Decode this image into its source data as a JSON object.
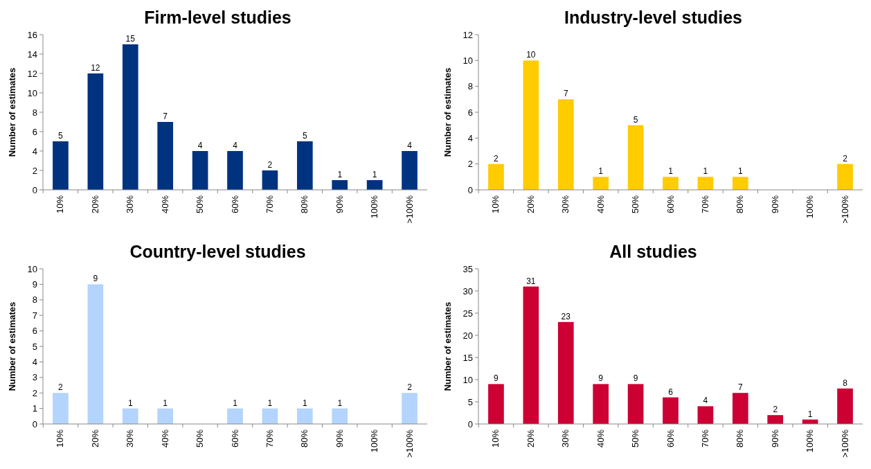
{
  "chart_data": [
    {
      "type": "bar",
      "title": "Firm-level studies",
      "ylabel": "Number of estimates",
      "categories": [
        "10%",
        "20%",
        "30%",
        "40%",
        "50%",
        "60%",
        "70%",
        "80%",
        "90%",
        "100%",
        ">100%"
      ],
      "series": [
        {
          "color": "#00337f",
          "values": [
            5,
            12,
            15,
            7,
            4,
            4,
            2,
            5,
            1,
            1,
            4
          ]
        }
      ],
      "ylim": [
        0,
        16
      ],
      "yticks": [
        0,
        2,
        4,
        6,
        8,
        10,
        12,
        14,
        16
      ],
      "grid": false,
      "data_labels": true
    },
    {
      "type": "bar",
      "title": "Industry-level studies",
      "ylabel": "Number of estimates",
      "categories": [
        "10%",
        "20%",
        "30%",
        "40%",
        "50%",
        "60%",
        "70%",
        "80%",
        "90%",
        "100%",
        ">100%"
      ],
      "series": [
        {
          "color": "#ffcc00",
          "values": [
            2,
            10,
            7,
            1,
            5,
            1,
            1,
            1,
            0,
            0,
            2
          ],
          "value_labels": [
            "2",
            "10",
            "7",
            "1",
            "5",
            "1",
            "1",
            "1",
            null,
            null,
            "2"
          ]
        }
      ],
      "ylim": [
        0,
        12
      ],
      "yticks": [
        0,
        2,
        4,
        6,
        8,
        10,
        12
      ],
      "grid": false
    },
    {
      "type": "bar",
      "title": "Country-level studies",
      "ylabel": "Number of estimates",
      "categories": [
        "10%",
        "20%",
        "30%",
        "40%",
        "50%",
        "60%",
        "70%",
        "80%",
        "90%",
        "100%",
        ">100%"
      ],
      "series": [
        {
          "color": "#b3d4fc",
          "values": [
            2,
            9,
            1,
            1,
            0,
            1,
            1,
            1,
            1,
            0,
            2
          ],
          "value_labels": [
            "2",
            "9",
            "1",
            "1",
            null,
            "1",
            "1",
            "1",
            "1",
            null,
            "2"
          ]
        }
      ],
      "ylim": [
        0,
        10
      ],
      "yticks": [
        0,
        1,
        2,
        3,
        4,
        5,
        6,
        7,
        8,
        9,
        10
      ],
      "grid": false
    },
    {
      "type": "bar",
      "title": "All studies",
      "ylabel": "Number of estimates",
      "categories": [
        "10%",
        "20%",
        "30%",
        "40%",
        "50%",
        "60%",
        "70%",
        "80%",
        "90%",
        "100%",
        ">100%"
      ],
      "series": [
        {
          "color": "#cc0033",
          "values": [
            9,
            31,
            23,
            9,
            9,
            6,
            4,
            7,
            2,
            1,
            8
          ]
        }
      ],
      "ylim": [
        0,
        35
      ],
      "yticks": [
        0,
        5,
        10,
        15,
        20,
        25,
        30,
        35
      ],
      "grid": false,
      "data_labels": true
    }
  ]
}
